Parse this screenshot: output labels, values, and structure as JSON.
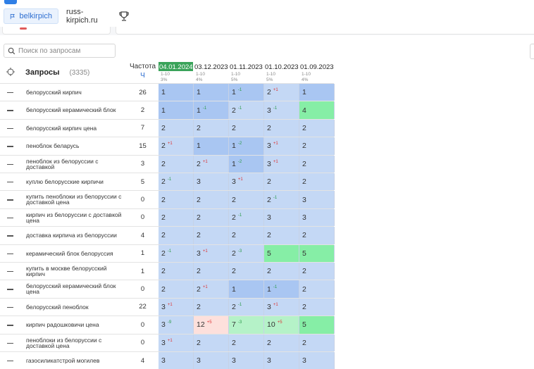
{
  "projects": [
    {
      "name": "belkirpich",
      "active": true
    },
    {
      "name": "russ-kirpich.ru",
      "active": false
    }
  ],
  "search": {
    "placeholder": "Поиск по запросам"
  },
  "table": {
    "queries_title": "Запросы",
    "queries_count": "(3335)",
    "freq_title": "Частота",
    "freq_unit": "Ч",
    "dates": [
      {
        "label": "04.01.2024",
        "sub1": "1-10",
        "sub2": "3%",
        "current": true
      },
      {
        "label": "03.12.2023",
        "sub1": "1-10",
        "sub2": "4%",
        "current": false
      },
      {
        "label": "01.11.2023",
        "sub1": "1-10",
        "sub2": "5%",
        "current": false
      },
      {
        "label": "01.10.2023",
        "sub1": "1-10",
        "sub2": "5%",
        "current": false
      },
      {
        "label": "01.09.2023",
        "sub1": "1-10",
        "sub2": "4%",
        "current": false
      }
    ],
    "colors": {
      "blue_dark": "#a9c6f2",
      "blue_light": "#c4d8f5",
      "green": "#86eea6",
      "green_light": "#b5f2c8",
      "pink": "#fde0dc"
    },
    "rows": [
      {
        "query": "белорусский кирпич",
        "freq": "26",
        "cells": [
          {
            "v": "1",
            "d": "",
            "c": "blue_dark"
          },
          {
            "v": "1",
            "d": "",
            "c": "blue_dark"
          },
          {
            "v": "1",
            "d": "-1",
            "c": "blue_dark"
          },
          {
            "v": "2",
            "d": "+1",
            "c": "blue_light"
          },
          {
            "v": "1",
            "d": "",
            "c": "blue_dark"
          }
        ]
      },
      {
        "query": "белорусский керамический блок",
        "freq": "2",
        "cells": [
          {
            "v": "1",
            "d": "",
            "c": "blue_dark"
          },
          {
            "v": "1",
            "d": "-1",
            "c": "blue_dark"
          },
          {
            "v": "2",
            "d": "-1",
            "c": "blue_light"
          },
          {
            "v": "3",
            "d": "-1",
            "c": "blue_light"
          },
          {
            "v": "4",
            "d": "",
            "c": "green"
          }
        ]
      },
      {
        "query": "белорусский кирпич цена",
        "freq": "7",
        "cells": [
          {
            "v": "2",
            "d": "",
            "c": "blue_light"
          },
          {
            "v": "2",
            "d": "",
            "c": "blue_light"
          },
          {
            "v": "2",
            "d": "",
            "c": "blue_light"
          },
          {
            "v": "2",
            "d": "",
            "c": "blue_light"
          },
          {
            "v": "2",
            "d": "",
            "c": "blue_light"
          }
        ]
      },
      {
        "query": "пеноблок беларусь",
        "freq": "15",
        "cells": [
          {
            "v": "2",
            "d": "+1",
            "c": "blue_light"
          },
          {
            "v": "1",
            "d": "",
            "c": "blue_dark"
          },
          {
            "v": "1",
            "d": "-2",
            "c": "blue_dark"
          },
          {
            "v": "3",
            "d": "+1",
            "c": "blue_light"
          },
          {
            "v": "2",
            "d": "",
            "c": "blue_light"
          }
        ]
      },
      {
        "query": "пеноблок из белоруссии с доставкой",
        "freq": "3",
        "cells": [
          {
            "v": "2",
            "d": "",
            "c": "blue_light"
          },
          {
            "v": "2",
            "d": "+1",
            "c": "blue_light"
          },
          {
            "v": "1",
            "d": "-2",
            "c": "blue_dark"
          },
          {
            "v": "3",
            "d": "+1",
            "c": "blue_light"
          },
          {
            "v": "2",
            "d": "",
            "c": "blue_light"
          }
        ]
      },
      {
        "query": "куплю белорусские кирпичи",
        "freq": "5",
        "cells": [
          {
            "v": "2",
            "d": "-1",
            "c": "blue_light"
          },
          {
            "v": "3",
            "d": "",
            "c": "blue_light"
          },
          {
            "v": "3",
            "d": "+1",
            "c": "blue_light"
          },
          {
            "v": "2",
            "d": "",
            "c": "blue_light"
          },
          {
            "v": "2",
            "d": "",
            "c": "blue_light"
          }
        ]
      },
      {
        "query": "купить пеноблоки из белоруссии с доставкой цена",
        "freq": "0",
        "cells": [
          {
            "v": "2",
            "d": "",
            "c": "blue_light"
          },
          {
            "v": "2",
            "d": "",
            "c": "blue_light"
          },
          {
            "v": "2",
            "d": "",
            "c": "blue_light"
          },
          {
            "v": "2",
            "d": "-1",
            "c": "blue_light"
          },
          {
            "v": "3",
            "d": "",
            "c": "blue_light"
          }
        ]
      },
      {
        "query": "кирпич из белоруссии с доставкой цена",
        "freq": "0",
        "cells": [
          {
            "v": "2",
            "d": "",
            "c": "blue_light"
          },
          {
            "v": "2",
            "d": "",
            "c": "blue_light"
          },
          {
            "v": "2",
            "d": "-1",
            "c": "blue_light"
          },
          {
            "v": "3",
            "d": "",
            "c": "blue_light"
          },
          {
            "v": "3",
            "d": "",
            "c": "blue_light"
          }
        ]
      },
      {
        "query": "доставка кирпича из белоруссии",
        "freq": "4",
        "cells": [
          {
            "v": "2",
            "d": "",
            "c": "blue_light"
          },
          {
            "v": "2",
            "d": "",
            "c": "blue_light"
          },
          {
            "v": "2",
            "d": "",
            "c": "blue_light"
          },
          {
            "v": "2",
            "d": "",
            "c": "blue_light"
          },
          {
            "v": "2",
            "d": "",
            "c": "blue_light"
          }
        ]
      },
      {
        "query": "керамический блок белоруссия",
        "freq": "1",
        "cells": [
          {
            "v": "2",
            "d": "-1",
            "c": "blue_light"
          },
          {
            "v": "3",
            "d": "+1",
            "c": "blue_light"
          },
          {
            "v": "2",
            "d": "-3",
            "c": "blue_light"
          },
          {
            "v": "5",
            "d": "",
            "c": "green"
          },
          {
            "v": "5",
            "d": "",
            "c": "green"
          }
        ]
      },
      {
        "query": "купить в москве белорусский кирпич",
        "freq": "1",
        "cells": [
          {
            "v": "2",
            "d": "",
            "c": "blue_light"
          },
          {
            "v": "2",
            "d": "",
            "c": "blue_light"
          },
          {
            "v": "2",
            "d": "",
            "c": "blue_light"
          },
          {
            "v": "2",
            "d": "",
            "c": "blue_light"
          },
          {
            "v": "2",
            "d": "",
            "c": "blue_light"
          }
        ]
      },
      {
        "query": "белорусский керамический блок цена",
        "freq": "0",
        "cells": [
          {
            "v": "2",
            "d": "",
            "c": "blue_light"
          },
          {
            "v": "2",
            "d": "+1",
            "c": "blue_light"
          },
          {
            "v": "1",
            "d": "",
            "c": "blue_dark"
          },
          {
            "v": "1",
            "d": "-1",
            "c": "blue_dark"
          },
          {
            "v": "2",
            "d": "",
            "c": "blue_light"
          }
        ]
      },
      {
        "query": "белорусский пеноблок",
        "freq": "22",
        "cells": [
          {
            "v": "3",
            "d": "+1",
            "c": "blue_light"
          },
          {
            "v": "2",
            "d": "",
            "c": "blue_light"
          },
          {
            "v": "2",
            "d": "-1",
            "c": "blue_light"
          },
          {
            "v": "3",
            "d": "+1",
            "c": "blue_light"
          },
          {
            "v": "2",
            "d": "",
            "c": "blue_light"
          }
        ]
      },
      {
        "query": "кирпич радошковичи цена",
        "freq": "0",
        "cells": [
          {
            "v": "3",
            "d": "-9",
            "c": "blue_light"
          },
          {
            "v": "12",
            "d": "+5",
            "c": "pink"
          },
          {
            "v": "7",
            "d": "-3",
            "c": "green_light"
          },
          {
            "v": "10",
            "d": "+5",
            "c": "green_light"
          },
          {
            "v": "5",
            "d": "",
            "c": "green"
          }
        ]
      },
      {
        "query": "пеноблоки из белоруссии с доставкой цена",
        "freq": "0",
        "cells": [
          {
            "v": "3",
            "d": "+1",
            "c": "blue_light"
          },
          {
            "v": "2",
            "d": "",
            "c": "blue_light"
          },
          {
            "v": "2",
            "d": "",
            "c": "blue_light"
          },
          {
            "v": "2",
            "d": "",
            "c": "blue_light"
          },
          {
            "v": "2",
            "d": "",
            "c": "blue_light"
          }
        ]
      },
      {
        "query": "газосиликатстрой могилев",
        "freq": "4",
        "cells": [
          {
            "v": "3",
            "d": "",
            "c": "blue_light"
          },
          {
            "v": "3",
            "d": "",
            "c": "blue_light"
          },
          {
            "v": "3",
            "d": "",
            "c": "blue_light"
          },
          {
            "v": "3",
            "d": "",
            "c": "blue_light"
          },
          {
            "v": "3",
            "d": "",
            "c": "blue_light"
          }
        ]
      }
    ]
  }
}
